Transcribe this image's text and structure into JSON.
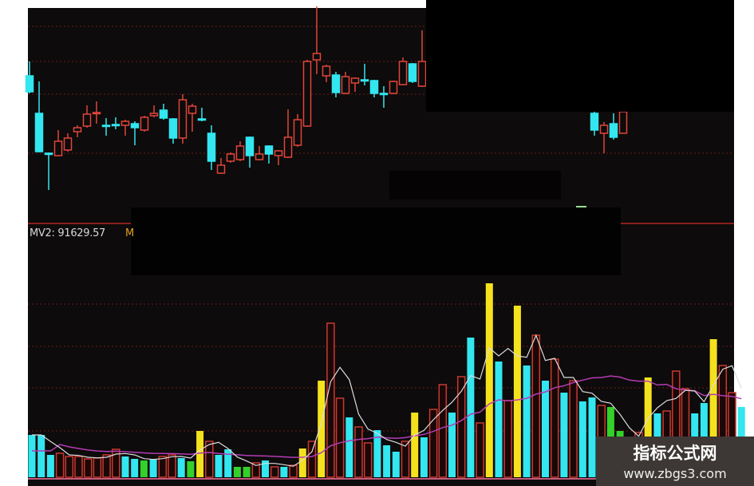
{
  "indicator": {
    "label": "MV2: 91629.57",
    "next_label_fragment": "M"
  },
  "watermark": {
    "title": "指标公式网",
    "url": "www.zbgs3.com"
  },
  "colors": {
    "background": "#0d0b0b",
    "up": "#e0453a",
    "down": "#33e6f0",
    "volume_up": "#c8392f",
    "volume_down": "#33e6f0",
    "volume_highlight": "#f5e21e",
    "volume_green": "#33d12a",
    "ma_short": "#dcdcdc",
    "ma_long": "#b43cb4",
    "grid": "#6a1c1c"
  },
  "chart_data": [
    {
      "type": "candlestick",
      "title": "",
      "note": "no axis scale printed; prices in relative units",
      "grid": true,
      "candles": [
        {
          "i": 0,
          "o": 205,
          "c": 185,
          "h": 223,
          "l": 183
        },
        {
          "i": 1,
          "o": 158,
          "c": 110,
          "h": 198,
          "l": 109
        },
        {
          "i": 2,
          "o": 108,
          "c": 107,
          "h": 109,
          "l": 62
        },
        {
          "i": 3,
          "o": 105,
          "c": 123,
          "h": 137,
          "l": 104
        },
        {
          "i": 4,
          "o": 112,
          "c": 127,
          "h": 133,
          "l": 110
        },
        {
          "i": 5,
          "o": 135,
          "c": 140,
          "h": 143,
          "l": 128
        },
        {
          "i": 6,
          "o": 142,
          "c": 157,
          "h": 168,
          "l": 140
        },
        {
          "i": 7,
          "o": 158,
          "c": 159,
          "h": 173,
          "l": 145
        },
        {
          "i": 8,
          "o": 143,
          "c": 142,
          "h": 152,
          "l": 130
        },
        {
          "i": 9,
          "o": 144,
          "c": 143,
          "h": 153,
          "l": 138
        },
        {
          "i": 10,
          "o": 143,
          "c": 148,
          "h": 150,
          "l": 130
        },
        {
          "i": 11,
          "o": 145,
          "c": 140,
          "h": 148,
          "l": 118
        },
        {
          "i": 12,
          "o": 137,
          "c": 153,
          "h": 155,
          "l": 135
        },
        {
          "i": 13,
          "o": 155,
          "c": 158,
          "h": 168,
          "l": 153
        },
        {
          "i": 14,
          "o": 162,
          "c": 152,
          "h": 170,
          "l": 150
        },
        {
          "i": 15,
          "o": 151,
          "c": 127,
          "h": 152,
          "l": 120
        },
        {
          "i": 16,
          "o": 127,
          "c": 175,
          "h": 182,
          "l": 120
        },
        {
          "i": 17,
          "o": 158,
          "c": 167,
          "h": 170,
          "l": 135
        },
        {
          "i": 18,
          "o": 151,
          "c": 150,
          "h": 165,
          "l": 148
        },
        {
          "i": 19,
          "o": 133,
          "c": 98,
          "h": 143,
          "l": 87
        },
        {
          "i": 20,
          "o": 83,
          "c": 93,
          "h": 102,
          "l": 82
        },
        {
          "i": 21,
          "o": 98,
          "c": 107,
          "h": 109,
          "l": 96
        },
        {
          "i": 22,
          "o": 100,
          "c": 117,
          "h": 123,
          "l": 98
        },
        {
          "i": 23,
          "o": 128,
          "c": 105,
          "h": 129,
          "l": 90
        },
        {
          "i": 24,
          "o": 100,
          "c": 107,
          "h": 117,
          "l": 99
        },
        {
          "i": 25,
          "o": 117,
          "c": 107,
          "h": 118,
          "l": 95
        },
        {
          "i": 26,
          "o": 105,
          "c": 111,
          "h": 112,
          "l": 93
        },
        {
          "i": 27,
          "o": 103,
          "c": 128,
          "h": 163,
          "l": 102
        },
        {
          "i": 28,
          "o": 118,
          "c": 150,
          "h": 157,
          "l": 116
        },
        {
          "i": 29,
          "o": 142,
          "c": 223,
          "h": 225,
          "l": 141
        },
        {
          "i": 30,
          "o": 225,
          "c": 233,
          "h": 292,
          "l": 207
        },
        {
          "i": 31,
          "o": 205,
          "c": 217,
          "h": 219,
          "l": 197
        },
        {
          "i": 32,
          "o": 206,
          "c": 184,
          "h": 210,
          "l": 178
        },
        {
          "i": 33,
          "o": 183,
          "c": 204,
          "h": 210,
          "l": 182
        },
        {
          "i": 34,
          "o": 196,
          "c": 202,
          "h": 203,
          "l": 185
        },
        {
          "i": 35,
          "o": 200,
          "c": 199,
          "h": 220,
          "l": 193
        },
        {
          "i": 36,
          "o": 199,
          "c": 183,
          "h": 200,
          "l": 178
        },
        {
          "i": 37,
          "o": 183,
          "c": 182,
          "h": 192,
          "l": 165
        },
        {
          "i": 38,
          "o": 183,
          "c": 198,
          "h": 199,
          "l": 182
        },
        {
          "i": 39,
          "o": 194,
          "c": 223,
          "h": 228,
          "l": 193
        },
        {
          "i": 40,
          "o": 220,
          "c": 198,
          "h": 221,
          "l": 196
        },
        {
          "i": 41,
          "o": 192,
          "c": 223,
          "h": 262,
          "l": 191
        },
        {
          "i": 59,
          "o": 158,
          "c": 137,
          "h": 160,
          "l": 130
        },
        {
          "i": 60,
          "o": 133,
          "c": 143,
          "h": 147,
          "l": 108
        },
        {
          "i": 61,
          "o": 145,
          "c": 128,
          "h": 158,
          "l": 125
        },
        {
          "i": 62,
          "o": 133,
          "c": 160,
          "h": 160,
          "l": 133
        }
      ]
    },
    {
      "type": "bar",
      "title": "",
      "note": "volume in relative units; kind = up/down/highlight/green",
      "grid": true,
      "volumes": [
        {
          "v": 53,
          "k": "down"
        },
        {
          "v": 53,
          "k": "down"
        },
        {
          "v": 28,
          "k": "down"
        },
        {
          "v": 30,
          "k": "up"
        },
        {
          "v": 26,
          "k": "up"
        },
        {
          "v": 26,
          "k": "up"
        },
        {
          "v": 23,
          "k": "up"
        },
        {
          "v": 24,
          "k": "up"
        },
        {
          "v": 28,
          "k": "up"
        },
        {
          "v": 35,
          "k": "up"
        },
        {
          "v": 26,
          "k": "down"
        },
        {
          "v": 23,
          "k": "down"
        },
        {
          "v": 21,
          "k": "green"
        },
        {
          "v": 23,
          "k": "down"
        },
        {
          "v": 26,
          "k": "up"
        },
        {
          "v": 28,
          "k": "up"
        },
        {
          "v": 24,
          "k": "down"
        },
        {
          "v": 20,
          "k": "green"
        },
        {
          "v": 58,
          "k": "highlight"
        },
        {
          "v": 45,
          "k": "up"
        },
        {
          "v": 28,
          "k": "down"
        },
        {
          "v": 35,
          "k": "down"
        },
        {
          "v": 13,
          "k": "green"
        },
        {
          "v": 13,
          "k": "green"
        },
        {
          "v": 18,
          "k": "up"
        },
        {
          "v": 21,
          "k": "down"
        },
        {
          "v": 13,
          "k": "up"
        },
        {
          "v": 13,
          "k": "down"
        },
        {
          "v": 15,
          "k": "up"
        },
        {
          "v": 36,
          "k": "highlight"
        },
        {
          "v": 45,
          "k": "up"
        },
        {
          "v": 121,
          "k": "highlight"
        },
        {
          "v": 193,
          "k": "up"
        },
        {
          "v": 99,
          "k": "up"
        },
        {
          "v": 75,
          "k": "down"
        },
        {
          "v": 63,
          "k": "up"
        },
        {
          "v": 43,
          "k": "up"
        },
        {
          "v": 59,
          "k": "down"
        },
        {
          "v": 40,
          "k": "down"
        },
        {
          "v": 32,
          "k": "down"
        },
        {
          "v": 45,
          "k": "up"
        },
        {
          "v": 81,
          "k": "highlight"
        },
        {
          "v": 50,
          "k": "down"
        },
        {
          "v": 85,
          "k": "up"
        },
        {
          "v": 116,
          "k": "up"
        },
        {
          "v": 81,
          "k": "down"
        },
        {
          "v": 126,
          "k": "up"
        },
        {
          "v": 175,
          "k": "down"
        },
        {
          "v": 68,
          "k": "up"
        },
        {
          "v": 243,
          "k": "highlight"
        },
        {
          "v": 145,
          "k": "down"
        },
        {
          "v": 96,
          "k": "up"
        },
        {
          "v": 215,
          "k": "highlight"
        },
        {
          "v": 140,
          "k": "down"
        },
        {
          "v": 178,
          "k": "up"
        },
        {
          "v": 121,
          "k": "down"
        },
        {
          "v": 148,
          "k": "up"
        },
        {
          "v": 106,
          "k": "down"
        },
        {
          "v": 121,
          "k": "up"
        },
        {
          "v": 95,
          "k": "down"
        },
        {
          "v": 100,
          "k": "down"
        },
        {
          "v": 90,
          "k": "up"
        },
        {
          "v": 88,
          "k": "green"
        },
        {
          "v": 58,
          "k": "green"
        },
        {
          "v": 40,
          "k": "up"
        },
        {
          "v": 56,
          "k": "up"
        },
        {
          "v": 125,
          "k": "highlight"
        },
        {
          "v": 80,
          "k": "down"
        },
        {
          "v": 83,
          "k": "up"
        },
        {
          "v": 133,
          "k": "up"
        },
        {
          "v": 111,
          "k": "up"
        },
        {
          "v": 80,
          "k": "down"
        },
        {
          "v": 93,
          "k": "down"
        },
        {
          "v": 173,
          "k": "highlight"
        },
        {
          "v": 140,
          "k": "up"
        },
        {
          "v": 106,
          "k": "up"
        },
        {
          "v": 88,
          "k": "down"
        }
      ]
    }
  ]
}
